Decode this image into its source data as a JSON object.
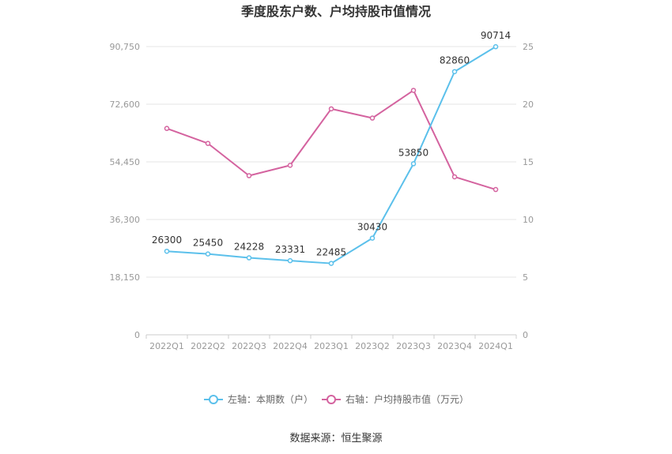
{
  "chart_data": {
    "type": "line",
    "title": "季度股东户数、户均持股市值情况",
    "categories": [
      "2022Q1",
      "2022Q2",
      "2022Q3",
      "2022Q4",
      "2023Q1",
      "2023Q2",
      "2023Q3",
      "2023Q4",
      "2024Q1"
    ],
    "series": [
      {
        "name": "左轴：本期数（户）",
        "axis": "left",
        "color": "#5bc0eb",
        "values": [
          26300,
          25450,
          24228,
          23331,
          22485,
          30430,
          53850,
          82860,
          90714
        ],
        "labels": [
          "26300",
          "25450",
          "24228",
          "23331",
          "22485",
          "30430",
          "53850",
          "82860",
          "90714"
        ]
      },
      {
        "name": "右轴：户均持股市值（万元）",
        "axis": "right",
        "color": "#d4639f",
        "values": [
          17.9,
          16.6,
          13.8,
          14.7,
          19.6,
          18.8,
          21.2,
          13.7,
          12.6
        ]
      }
    ],
    "y_left": {
      "range": [
        0,
        90750
      ],
      "ticks": [
        0,
        18150,
        36300,
        54450,
        72600,
        90750
      ],
      "tick_labels": [
        "0",
        "18,150",
        "36,300",
        "54,450",
        "72,600",
        "90,750"
      ]
    },
    "y_right": {
      "range": [
        0,
        25
      ],
      "ticks": [
        0,
        5,
        10,
        15,
        20,
        25
      ],
      "tick_labels": [
        "0",
        "5",
        "10",
        "15",
        "20",
        "25"
      ]
    },
    "grid": true,
    "legend_position": "bottom"
  },
  "source_text": "数据来源：恒生聚源"
}
